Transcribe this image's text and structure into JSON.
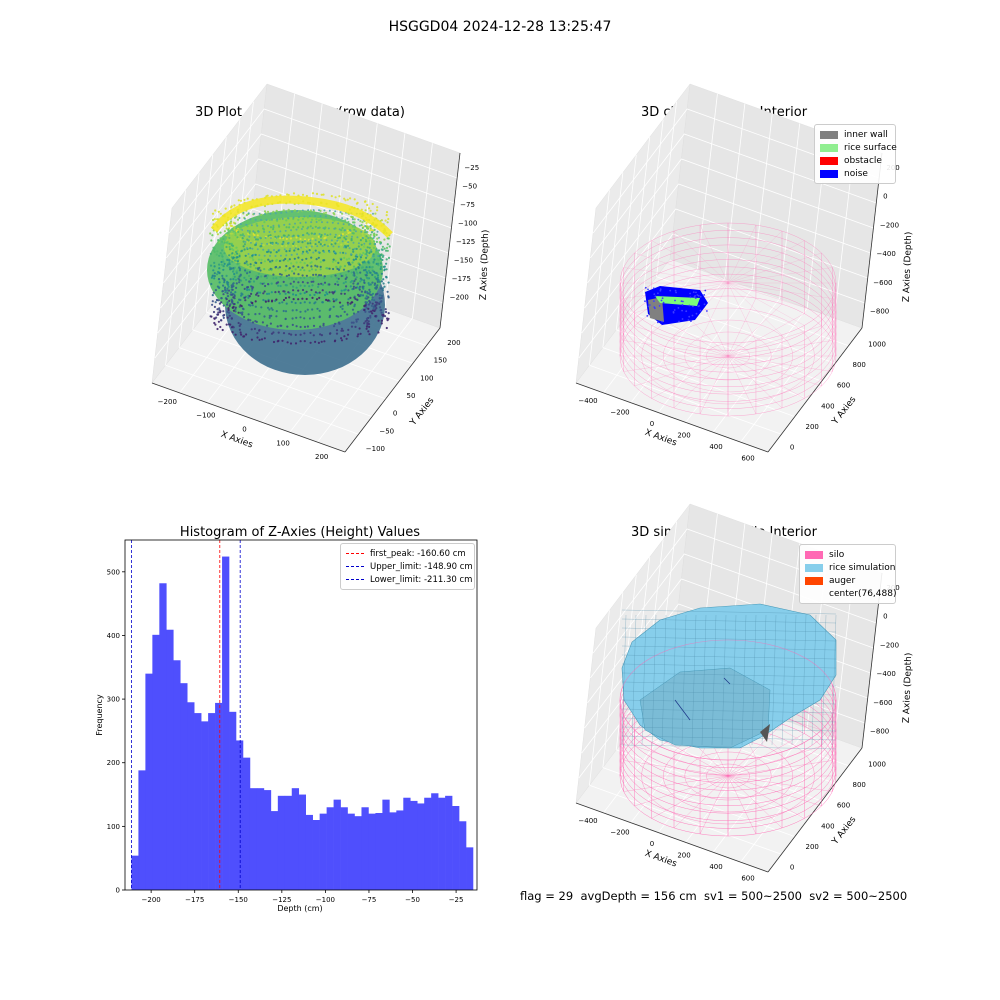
{
  "figure": {
    "suptitle": "HSGGD04 2024-12-28 13:25:47",
    "footer": "flag = 29  avgDepth = 156 cm  sv1 = 500~2500  sv2 = 500~2500"
  },
  "colors": {
    "histogram_bar": "#4f4ffd",
    "first_peak_line": "#ff0000",
    "limit_line": "#0000cc",
    "inner_wall": "#808080",
    "rice_surface": "#90ee90",
    "obstacle": "#ff0000",
    "noise": "#0000ff",
    "silo": "#ff69b4",
    "rice_simulation": "#87ceeb",
    "auger": "#ff4500"
  },
  "chart_data": [
    {
      "type": "scatter3d",
      "title": "3D Plot of Silo Interior(row data)",
      "xlabel": "X Axies",
      "ylabel": "Y Axies",
      "zlabel": "Z Axies (Depth)",
      "xticks": [
        "−200",
        "−100",
        "0",
        "100",
        "200"
      ],
      "yticks": [
        "−100",
        "−50",
        "0",
        "50",
        "100",
        "150",
        "200"
      ],
      "zticks": [
        "−25",
        "−50",
        "−75",
        "−100",
        "−125",
        "−150",
        "−175",
        "−200"
      ],
      "colormap": "viridis"
    },
    {
      "type": "scatter3d",
      "title": "3D classify of Silo Interior",
      "xlabel": "X Axies",
      "ylabel": "Y Axies",
      "zlabel": "Z Axies (Depth)",
      "xticks": [
        "−400",
        "−200",
        "0",
        "200",
        "400",
        "600"
      ],
      "yticks": [
        "0",
        "200",
        "400",
        "600",
        "800",
        "1000"
      ],
      "zticks": [
        "200",
        "0",
        "−200",
        "−400",
        "−600",
        "−800"
      ],
      "legend": [
        "inner wall",
        "rice surface",
        "obstacle",
        "noise"
      ],
      "legend_position": "top-right"
    },
    {
      "type": "bar",
      "title": "Histogram of Z-Axies (Height) Values",
      "xlabel": "Depth (cm)",
      "ylabel": "Frequency",
      "xlim": [
        -215,
        -13
      ],
      "ylim": [
        0,
        550
      ],
      "xticks": [
        -200,
        -175,
        -150,
        -125,
        -100,
        -75,
        -50,
        -25
      ],
      "yticks": [
        0,
        100,
        200,
        300,
        400,
        500
      ],
      "bin_width": 4,
      "bin_start": -211.3,
      "values": [
        54,
        188,
        340,
        401,
        482,
        409,
        361,
        325,
        295,
        278,
        265,
        278,
        294,
        524,
        280,
        235,
        208,
        160,
        160,
        157,
        124,
        148,
        148,
        160,
        150,
        118,
        110,
        120,
        130,
        142,
        130,
        120,
        116,
        130,
        120,
        121,
        142,
        122,
        125,
        145,
        140,
        136,
        145,
        152,
        145,
        148,
        132,
        108,
        67
      ],
      "vlines": [
        {
          "label": "first_peak: -160.60 cm",
          "x": -160.6,
          "color": "red"
        },
        {
          "label": "Upper_limit: -148.90 cm",
          "x": -148.9,
          "color": "blue"
        },
        {
          "label": "Lower_limit: -211.30 cm",
          "x": -211.3,
          "color": "blue"
        }
      ],
      "legend_position": "top-right"
    },
    {
      "type": "surface3d",
      "title": "3D simulation of Silo Interior",
      "xlabel": "X Axies",
      "ylabel": "Y Axies",
      "zlabel": "Z Axies (Depth)",
      "xticks": [
        "−400",
        "−200",
        "0",
        "200",
        "400",
        "600"
      ],
      "yticks": [
        "0",
        "200",
        "400",
        "600",
        "800",
        "1000"
      ],
      "zticks": [
        "200",
        "0",
        "−200",
        "−400",
        "−600",
        "−800"
      ],
      "legend": [
        "silo",
        "rice simulation",
        "auger",
        "center(76,488)"
      ],
      "legend_position": "top-right"
    }
  ]
}
